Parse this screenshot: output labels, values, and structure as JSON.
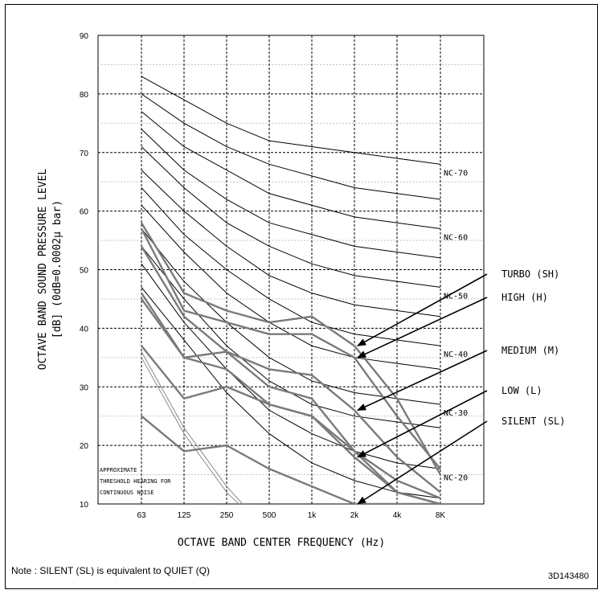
{
  "note": "Note : SILENT (SL) is equivalent to QUIET (Q)",
  "figure_code": "3D143480",
  "chart_data": {
    "type": "line",
    "title": "",
    "xlabel": "OCTAVE BAND CENTER FREQUENCY (Hz)",
    "ylabel_line1": "OCTAVE BAND SOUND PRESSURE LEVEL",
    "ylabel_line2": "[dB] (0dB=0.0002μ bar)",
    "ylim": [
      10,
      90
    ],
    "yticks": [
      "10",
      "20",
      "30",
      "40",
      "50",
      "60",
      "70",
      "80",
      "90"
    ],
    "categories": [
      "63",
      "125",
      "250",
      "500",
      "1k",
      "2k",
      "4k",
      "8K"
    ],
    "grid": true,
    "threshold_label": [
      "APPROXIMATE",
      "THRESHOLD HEARING FOR",
      "CONTINUOUS NOISE"
    ],
    "threshold_curves": [
      [
        36,
        23,
        13,
        5,
        3,
        2,
        2,
        3
      ],
      [
        35,
        22,
        12,
        5,
        3,
        2,
        2,
        3
      ]
    ],
    "nc_curves": [
      {
        "name": "NC-70",
        "values": [
          83,
          79,
          75,
          72,
          71,
          70,
          69,
          68
        ]
      },
      {
        "name": "",
        "values": [
          80,
          75,
          71,
          68,
          66,
          64,
          63,
          62
        ]
      },
      {
        "name": "NC-60",
        "values": [
          77,
          71,
          67,
          63,
          61,
          59,
          58,
          57
        ]
      },
      {
        "name": "",
        "values": [
          74,
          67,
          62,
          58,
          56,
          54,
          53,
          52
        ]
      },
      {
        "name": "NC-50",
        "values": [
          71,
          64,
          58,
          54,
          51,
          49,
          48,
          47
        ]
      },
      {
        "name": "",
        "values": [
          67,
          60,
          54,
          49,
          46,
          44,
          43,
          42
        ]
      },
      {
        "name": "NC-40",
        "values": [
          64,
          56,
          50,
          45,
          41,
          39,
          38,
          37
        ]
      },
      {
        "name": "",
        "values": [
          61,
          53,
          46,
          41,
          37,
          35,
          34,
          33
        ]
      },
      {
        "name": "NC-30",
        "values": [
          57,
          48,
          41,
          35,
          31,
          29,
          28,
          27
        ]
      },
      {
        "name": "",
        "values": [
          54,
          45,
          37,
          31,
          27,
          25,
          24,
          23
        ]
      },
      {
        "name": "NC-20",
        "values": [
          51,
          41,
          33,
          26,
          22,
          19,
          17,
          16
        ]
      },
      {
        "name": "",
        "values": [
          47,
          38,
          29,
          22,
          17,
          14,
          12,
          11
        ]
      }
    ],
    "series": [
      {
        "name": "TURBO (SH)",
        "values": [
          58,
          46,
          43,
          41,
          42,
          37,
          28,
          15
        ]
      },
      {
        "name": "HIGH (H)",
        "values": [
          57,
          43,
          41,
          39,
          39,
          35,
          25,
          16
        ]
      },
      {
        "name": "MEDIUM (M)",
        "values": [
          54,
          42,
          36,
          33,
          32,
          26,
          18,
          12
        ]
      },
      {
        "name": "LOW (L)",
        "values": [
          46,
          35,
          36,
          30,
          28,
          19,
          12,
          10
        ]
      },
      {
        "name": "",
        "values": [
          45,
          35,
          33,
          27,
          25,
          18,
          12,
          10
        ]
      },
      {
        "name": "",
        "values": [
          37,
          28,
          30,
          27,
          25,
          19,
          14,
          11
        ]
      },
      {
        "name": "SILENT (SL)",
        "values": [
          25,
          19,
          20,
          16,
          13,
          10,
          10,
          10
        ]
      }
    ],
    "callouts": [
      {
        "label": "TURBO (SH)",
        "target_index": 5,
        "series_index": 0
      },
      {
        "label": "HIGH (H)",
        "target_index": 5,
        "series_index": 1
      },
      {
        "label": "MEDIUM (M)",
        "target_index": 5,
        "series_index": 2
      },
      {
        "label": "LOW (L)",
        "target_index": 5,
        "series_index": 4
      },
      {
        "label": "SILENT (SL)",
        "target_index": 5,
        "series_index": 6
      }
    ]
  }
}
